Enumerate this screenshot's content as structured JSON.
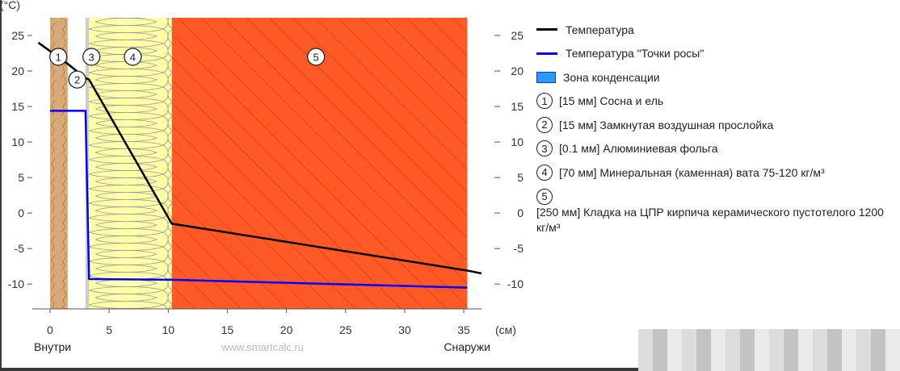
{
  "chart_data": {
    "type": "line",
    "y_unit_label": "(°C)",
    "x_unit_label": "(см)",
    "xlim": [
      -1.5,
      36.5
    ],
    "ylim": [
      -13.5,
      27.5
    ],
    "x_ticks": [
      0,
      5,
      10,
      15,
      20,
      25,
      30,
      35
    ],
    "y_ticks": [
      -10,
      -5,
      0,
      5,
      10,
      15,
      20,
      25
    ],
    "inside_label": "Внутри",
    "outside_label": "Снаружи",
    "watermark_text": "www.smartcalc.ru",
    "layers": [
      {
        "number": "1",
        "label": "[15 мм] Сосна и ель",
        "x_start": 0,
        "x_end": 1.5,
        "color": "#d9a877",
        "pattern": "wood"
      },
      {
        "number": "2",
        "label": "[15 мм] Замкнутая воздушная прослойка",
        "x_start": 1.5,
        "x_end": 3.0,
        "color": "#ffffff",
        "pattern": "none"
      },
      {
        "number": "3",
        "label": "[0.1 мм] Алюминиевая фольга",
        "x_start": 3.0,
        "x_end": 3.3,
        "color": "#cccccc",
        "pattern": "none"
      },
      {
        "number": "4",
        "label": "[70 мм] Минеральная (каменная) вата 75-120 кг/м³",
        "x_start": 3.3,
        "x_end": 10.3,
        "color": "#ffffa8",
        "pattern": "wool"
      },
      {
        "number": "5",
        "label": "[250 мм] Кладка на ЦПР кирпича керамического пустотелого 1200 кг/м³",
        "x_start": 10.3,
        "x_end": 35.3,
        "color": "#ff5a26",
        "pattern": "hatch"
      }
    ],
    "layer_markers": [
      {
        "number": "1",
        "x": 0.7,
        "y": 22.0
      },
      {
        "number": "2",
        "x": 2.3,
        "y": 18.8
      },
      {
        "number": "3",
        "x": 3.5,
        "y": 22.0
      },
      {
        "number": "4",
        "x": 7.0,
        "y": 22.0
      },
      {
        "number": "5",
        "x": 22.5,
        "y": 22.0
      }
    ],
    "series": [
      {
        "name": "Температура",
        "color": "#000000",
        "x": [
          -1.0,
          1.5,
          3.0,
          3.3,
          10.3,
          35.3,
          36.5
        ],
        "y": [
          24.0,
          21.0,
          19.0,
          18.8,
          -1.5,
          -8.1,
          -8.5
        ]
      },
      {
        "name": "Температура \"Точки росы\"",
        "color": "#0000ff",
        "x": [
          0,
          3.0,
          3.3,
          10.3,
          35.3
        ],
        "y": [
          14.4,
          14.4,
          -9.3,
          -9.4,
          -10.5
        ]
      }
    ],
    "condensation_zone": {
      "name": "Зона конденсации",
      "color": "#2c9bff"
    }
  }
}
